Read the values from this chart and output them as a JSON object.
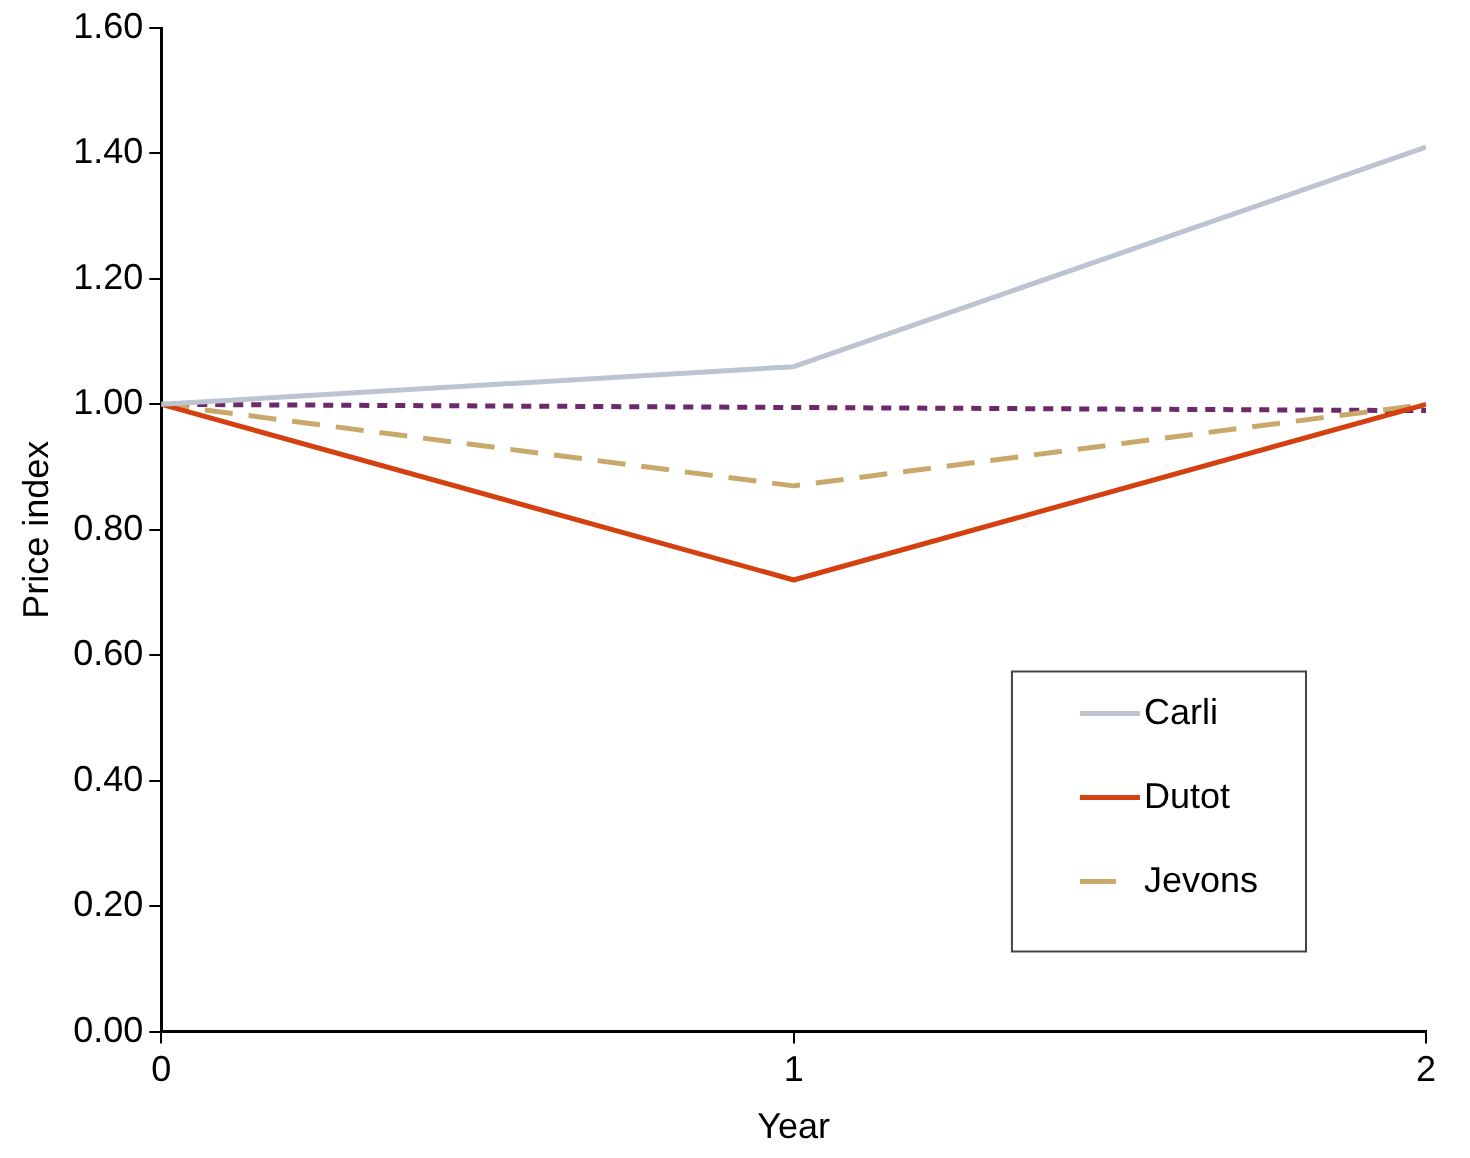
{
  "chart_data": {
    "type": "line",
    "xlabel": "Year",
    "ylabel": "Price index",
    "x": [
      0,
      1,
      2
    ],
    "xlim": [
      0,
      2
    ],
    "xticks": [
      0,
      1,
      2
    ],
    "ylim": [
      0,
      1.6
    ],
    "yticks": [
      {
        "value": 0,
        "label": "0.00"
      },
      {
        "value": 0.2,
        "label": "0.20"
      },
      {
        "value": 0.4,
        "label": "0.40"
      },
      {
        "value": 0.6,
        "label": "0.60"
      },
      {
        "value": 0.8,
        "label": "0.80"
      },
      {
        "value": 1,
        "label": "1.00"
      },
      {
        "value": 1.2,
        "label": "1.20"
      },
      {
        "value": 1.4,
        "label": "1.40"
      },
      {
        "value": 1.6,
        "label": "1.60"
      }
    ],
    "series": [
      {
        "name": "Carli",
        "color": "#bcc3d1",
        "values": [
          1,
          1.06,
          1.41
        ],
        "line_style": "solid"
      },
      {
        "name": "Dutot",
        "color": "#d4400f",
        "values": [
          1,
          0.72,
          1
        ],
        "line_style": "solid"
      },
      {
        "name": "Jevons",
        "color": "#c8a86b",
        "values": [
          1,
          0.87,
          1
        ],
        "line_style": "dashed"
      },
      {
        "color": "#6b2a6b",
        "values": [
          1,
          0.995,
          0.99
        ],
        "line_style": "dotted"
      }
    ],
    "grid": false,
    "legend": "bottom right",
    "marker": "none"
  }
}
